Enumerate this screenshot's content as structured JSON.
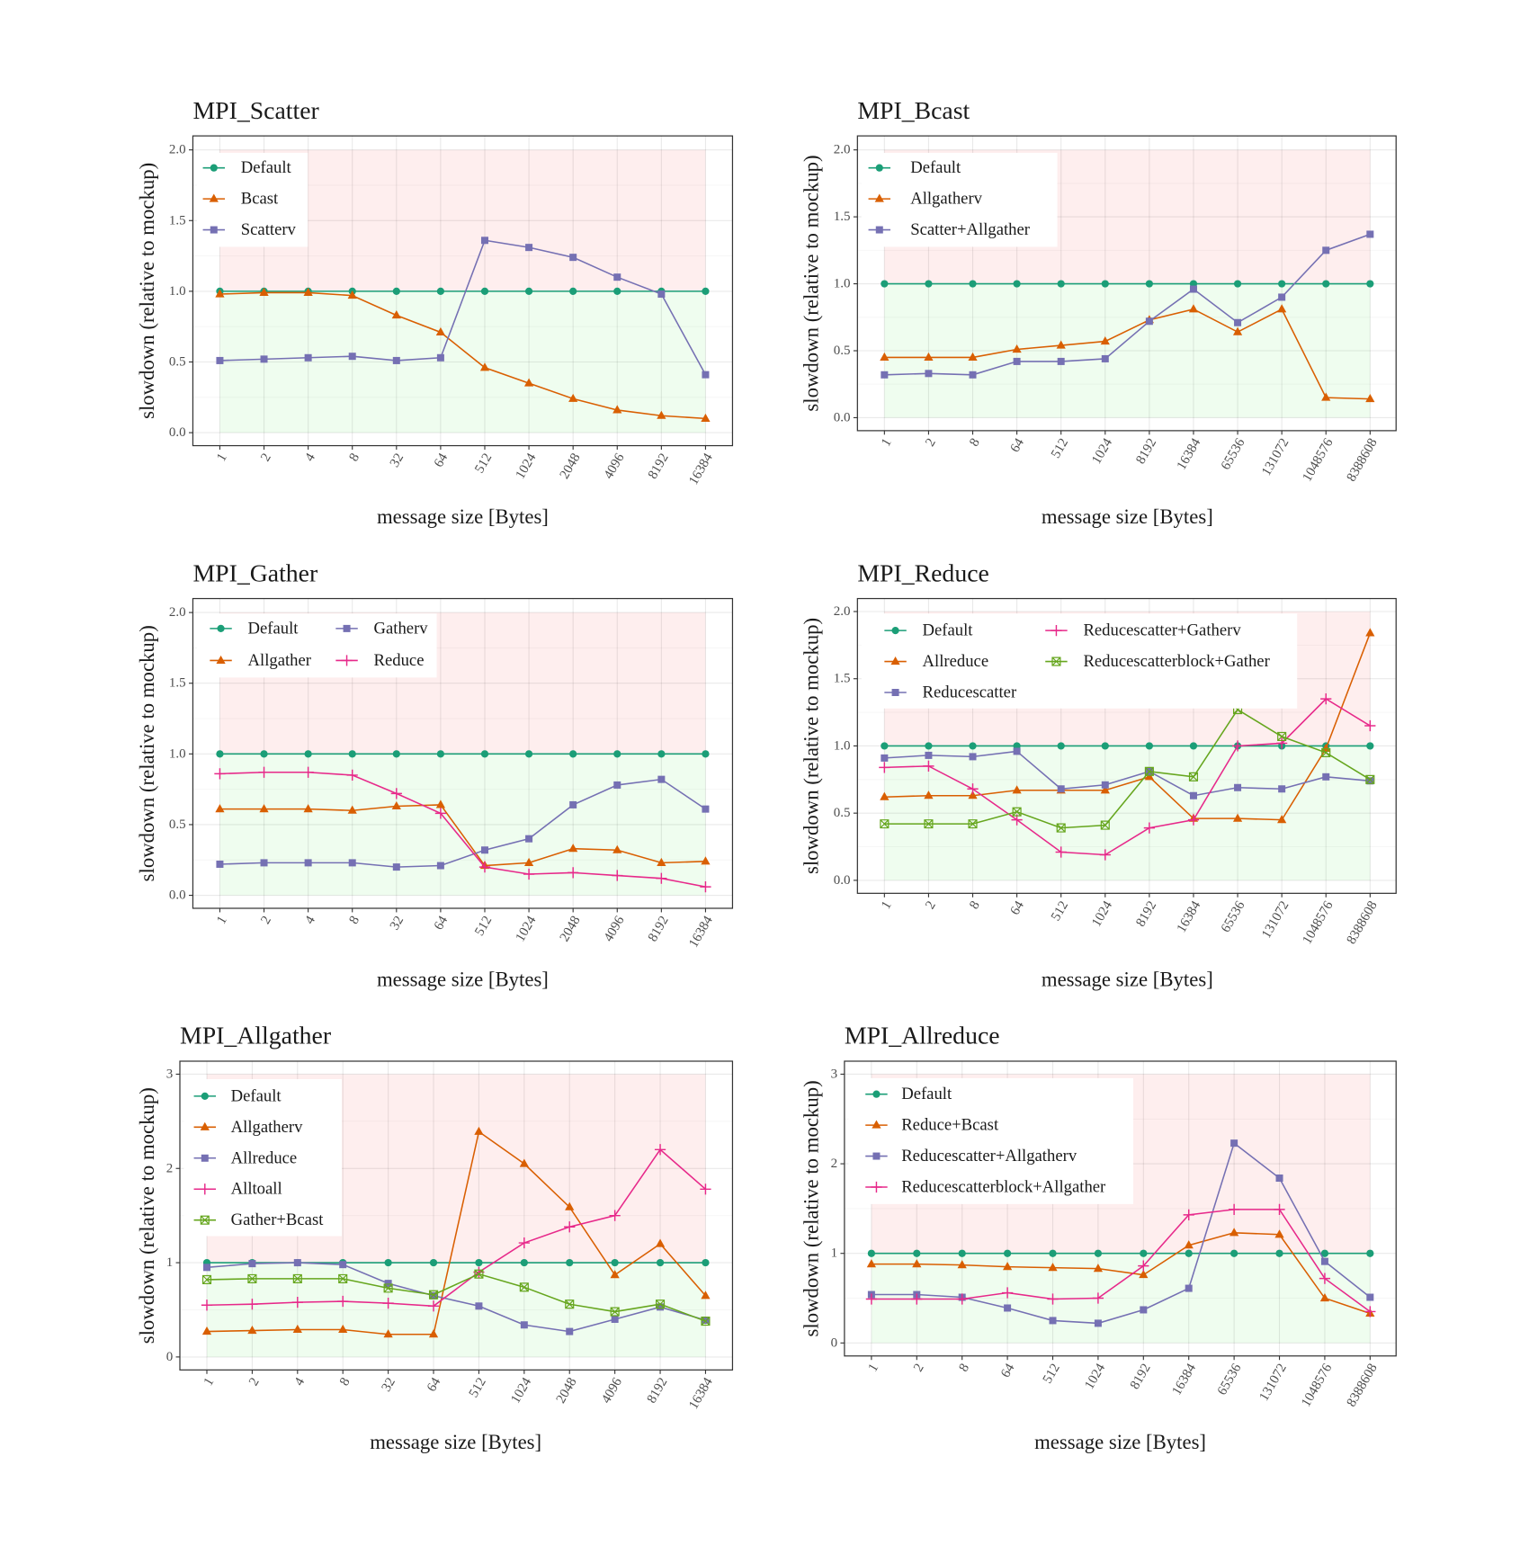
{
  "chart_data": [
    {
      "type": "line",
      "title": "MPI_Scatter",
      "xlabel": "message size [Bytes]",
      "ylabel": "slowdown (relative to mockup)",
      "legend_position": "top-left",
      "categories": [
        "1",
        "2",
        "4",
        "8",
        "32",
        "64",
        "512",
        "1024",
        "2048",
        "4096",
        "8192",
        "16384"
      ],
      "yticks": [
        "0.0",
        "0.5",
        "1.0",
        "1.5",
        "2.0"
      ],
      "ylim": [
        0,
        2
      ],
      "regions": [
        {
          "from": 1,
          "to": 2,
          "color": "#FEEEEE"
        },
        {
          "from": 0,
          "to": 1,
          "color": "#EFFDEF"
        }
      ],
      "series": [
        {
          "name": "Default",
          "color": "#1B9E77",
          "marker": "circle",
          "values": [
            1,
            1,
            1,
            1,
            1,
            1,
            1,
            1,
            1,
            1,
            1,
            1
          ]
        },
        {
          "name": "Bcast",
          "color": "#D95F02",
          "marker": "triangle",
          "values": [
            0.98,
            0.99,
            0.99,
            0.97,
            0.83,
            0.71,
            0.46,
            0.35,
            0.24,
            0.16,
            0.12,
            0.1
          ]
        },
        {
          "name": "Scatterv",
          "color": "#7570B3",
          "marker": "square",
          "values": [
            0.51,
            0.52,
            0.53,
            0.54,
            0.51,
            0.53,
            1.36,
            1.31,
            1.24,
            1.1,
            0.98,
            0.41
          ]
        }
      ]
    },
    {
      "type": "line",
      "title": "MPI_Bcast",
      "xlabel": "message size [Bytes]",
      "ylabel": "slowdown (relative to mockup)",
      "legend_position": "top-left",
      "categories": [
        "1",
        "2",
        "8",
        "64",
        "512",
        "1024",
        "8192",
        "16384",
        "65536",
        "131072",
        "1048576",
        "8388608"
      ],
      "yticks": [
        "0.0",
        "0.5",
        "1.0",
        "1.5",
        "2.0"
      ],
      "ylim": [
        0,
        2
      ],
      "regions": [
        {
          "from": 1,
          "to": 2,
          "color": "#FEEEEE"
        },
        {
          "from": 0,
          "to": 1,
          "color": "#EFFDEF"
        }
      ],
      "series": [
        {
          "name": "Default",
          "color": "#1B9E77",
          "marker": "circle",
          "values": [
            1,
            1,
            1,
            1,
            1,
            1,
            1,
            1,
            1,
            1,
            1,
            1
          ]
        },
        {
          "name": "Allgatherv",
          "color": "#D95F02",
          "marker": "triangle",
          "values": [
            0.45,
            0.45,
            0.45,
            0.51,
            0.54,
            0.57,
            0.73,
            0.81,
            0.64,
            0.81,
            0.15,
            0.14
          ]
        },
        {
          "name": "Scatter+Allgather",
          "color": "#7570B3",
          "marker": "square",
          "values": [
            0.32,
            0.33,
            0.32,
            0.42,
            0.42,
            0.44,
            0.72,
            0.96,
            0.71,
            0.9,
            1.25,
            1.37
          ]
        }
      ]
    },
    {
      "type": "line",
      "title": "MPI_Gather",
      "xlabel": "message size [Bytes]",
      "ylabel": "slowdown (relative to mockup)",
      "legend_position": "top-left",
      "categories": [
        "1",
        "2",
        "4",
        "8",
        "32",
        "64",
        "512",
        "1024",
        "2048",
        "4096",
        "8192",
        "16384"
      ],
      "yticks": [
        "0.0",
        "0.5",
        "1.0",
        "1.5",
        "2.0"
      ],
      "ylim": [
        0,
        2
      ],
      "regions": [
        {
          "from": 1,
          "to": 2,
          "color": "#FEEEEE"
        },
        {
          "from": 0,
          "to": 1,
          "color": "#EFFDEF"
        }
      ],
      "series": [
        {
          "name": "Default",
          "color": "#1B9E77",
          "marker": "circle",
          "values": [
            1,
            1,
            1,
            1,
            1,
            1,
            1,
            1,
            1,
            1,
            1,
            1
          ]
        },
        {
          "name": "Allgather",
          "color": "#D95F02",
          "marker": "triangle",
          "values": [
            0.61,
            0.61,
            0.61,
            0.6,
            0.63,
            0.64,
            0.21,
            0.23,
            0.33,
            0.32,
            0.23,
            0.24
          ]
        },
        {
          "name": "Gatherv",
          "color": "#7570B3",
          "marker": "square",
          "values": [
            0.22,
            0.23,
            0.23,
            0.23,
            0.2,
            0.21,
            0.32,
            0.4,
            0.64,
            0.78,
            0.82,
            0.61
          ]
        },
        {
          "name": "Reduce",
          "color": "#E7298A",
          "marker": "plus",
          "values": [
            0.86,
            0.87,
            0.87,
            0.85,
            0.72,
            0.58,
            0.2,
            0.15,
            0.16,
            0.14,
            0.12,
            0.06
          ]
        }
      ]
    },
    {
      "type": "line",
      "title": "MPI_Reduce",
      "xlabel": "message size [Bytes]",
      "ylabel": "slowdown (relative to mockup)",
      "legend_position": "top-left",
      "categories": [
        "1",
        "2",
        "8",
        "64",
        "512",
        "1024",
        "8192",
        "16384",
        "65536",
        "131072",
        "1048576",
        "8388608"
      ],
      "yticks": [
        "0.0",
        "0.5",
        "1.0",
        "1.5",
        "2.0"
      ],
      "ylim": [
        0,
        2
      ],
      "regions": [
        {
          "from": 1,
          "to": 2,
          "color": "#FEEEEE"
        },
        {
          "from": 0,
          "to": 1,
          "color": "#EFFDEF"
        }
      ],
      "series": [
        {
          "name": "Default",
          "color": "#1B9E77",
          "marker": "circle",
          "values": [
            1,
            1,
            1,
            1,
            1,
            1,
            1,
            1,
            1,
            1,
            1,
            1
          ]
        },
        {
          "name": "Allreduce",
          "color": "#D95F02",
          "marker": "triangle",
          "values": [
            0.62,
            0.63,
            0.63,
            0.67,
            0.67,
            0.67,
            0.77,
            0.46,
            0.46,
            0.45,
            0.98,
            1.84
          ]
        },
        {
          "name": "Reducescatter",
          "color": "#7570B3",
          "marker": "square",
          "values": [
            0.91,
            0.93,
            0.92,
            0.96,
            0.68,
            0.71,
            0.81,
            0.63,
            0.69,
            0.68,
            0.77,
            0.74
          ]
        },
        {
          "name": "Reducescatter+Gatherv",
          "color": "#E7298A",
          "marker": "plus",
          "values": [
            0.84,
            0.85,
            0.68,
            0.45,
            0.21,
            0.19,
            0.39,
            0.45,
            1.0,
            1.02,
            1.35,
            1.15
          ]
        },
        {
          "name": "Reducescatterblock+Gather",
          "color": "#66A61E",
          "marker": "boxed-x",
          "values": [
            0.42,
            0.42,
            0.42,
            0.51,
            0.39,
            0.41,
            0.81,
            0.77,
            1.27,
            1.07,
            0.95,
            0.75
          ]
        }
      ]
    },
    {
      "type": "line",
      "title": "MPI_Allgather",
      "xlabel": "message size [Bytes]",
      "ylabel": "slowdown (relative to mockup)",
      "legend_position": "top-left",
      "categories": [
        "1",
        "2",
        "4",
        "8",
        "32",
        "64",
        "512",
        "1024",
        "2048",
        "4096",
        "8192",
        "16384"
      ],
      "yticks": [
        "0",
        "1",
        "2",
        "3"
      ],
      "ylim": [
        0,
        3
      ],
      "regions": [
        {
          "from": 1,
          "to": 3,
          "color": "#FEEEEE"
        },
        {
          "from": 0,
          "to": 1,
          "color": "#EFFDEF"
        }
      ],
      "series": [
        {
          "name": "Default",
          "color": "#1B9E77",
          "marker": "circle",
          "values": [
            1,
            1,
            1,
            1,
            1,
            1,
            1,
            1,
            1,
            1,
            1,
            1
          ]
        },
        {
          "name": "Allgatherv",
          "color": "#D95F02",
          "marker": "triangle",
          "values": [
            0.27,
            0.28,
            0.29,
            0.29,
            0.24,
            0.24,
            2.39,
            2.05,
            1.59,
            0.87,
            1.2,
            0.65
          ]
        },
        {
          "name": "Allreduce",
          "color": "#7570B3",
          "marker": "square",
          "values": [
            0.95,
            0.99,
            1.0,
            0.98,
            0.78,
            0.65,
            0.54,
            0.34,
            0.27,
            0.4,
            0.53,
            0.39
          ]
        },
        {
          "name": "Alltoall",
          "color": "#E7298A",
          "marker": "plus",
          "values": [
            0.55,
            0.56,
            0.58,
            0.59,
            0.57,
            0.54,
            0.9,
            1.21,
            1.38,
            1.5,
            2.2,
            1.78
          ]
        },
        {
          "name": "Gather+Bcast",
          "color": "#66A61E",
          "marker": "boxed-x",
          "values": [
            0.82,
            0.83,
            0.83,
            0.83,
            0.73,
            0.66,
            0.88,
            0.74,
            0.56,
            0.48,
            0.56,
            0.38
          ]
        }
      ]
    },
    {
      "type": "line",
      "title": "MPI_Allreduce",
      "xlabel": "message size [Bytes]",
      "ylabel": "slowdown (relative to mockup)",
      "legend_position": "top-left",
      "categories": [
        "1",
        "2",
        "8",
        "64",
        "512",
        "1024",
        "8192",
        "16384",
        "65536",
        "131072",
        "1048576",
        "8388608"
      ],
      "yticks": [
        "0",
        "1",
        "2",
        "3"
      ],
      "ylim": [
        0,
        3
      ],
      "regions": [
        {
          "from": 1,
          "to": 3,
          "color": "#FEEEEE"
        },
        {
          "from": 0,
          "to": 1,
          "color": "#EFFDEF"
        }
      ],
      "series": [
        {
          "name": "Default",
          "color": "#1B9E77",
          "marker": "circle",
          "values": [
            1,
            1,
            1,
            1,
            1,
            1,
            1,
            1,
            1,
            1,
            1,
            1
          ]
        },
        {
          "name": "Reduce+Bcast",
          "color": "#D95F02",
          "marker": "triangle",
          "values": [
            0.88,
            0.88,
            0.87,
            0.85,
            0.84,
            0.83,
            0.76,
            1.09,
            1.23,
            1.21,
            0.5,
            0.33
          ]
        },
        {
          "name": "Reducescatter+Allgatherv",
          "color": "#7570B3",
          "marker": "square",
          "values": [
            0.54,
            0.54,
            0.51,
            0.39,
            0.25,
            0.22,
            0.37,
            0.61,
            2.23,
            1.84,
            0.91,
            0.51
          ]
        },
        {
          "name": "Reducescatterblock+Allgather",
          "color": "#E7298A",
          "marker": "plus",
          "values": [
            0.49,
            0.49,
            0.49,
            0.56,
            0.49,
            0.5,
            0.86,
            1.43,
            1.49,
            1.49,
            0.72,
            0.35
          ]
        }
      ]
    }
  ]
}
